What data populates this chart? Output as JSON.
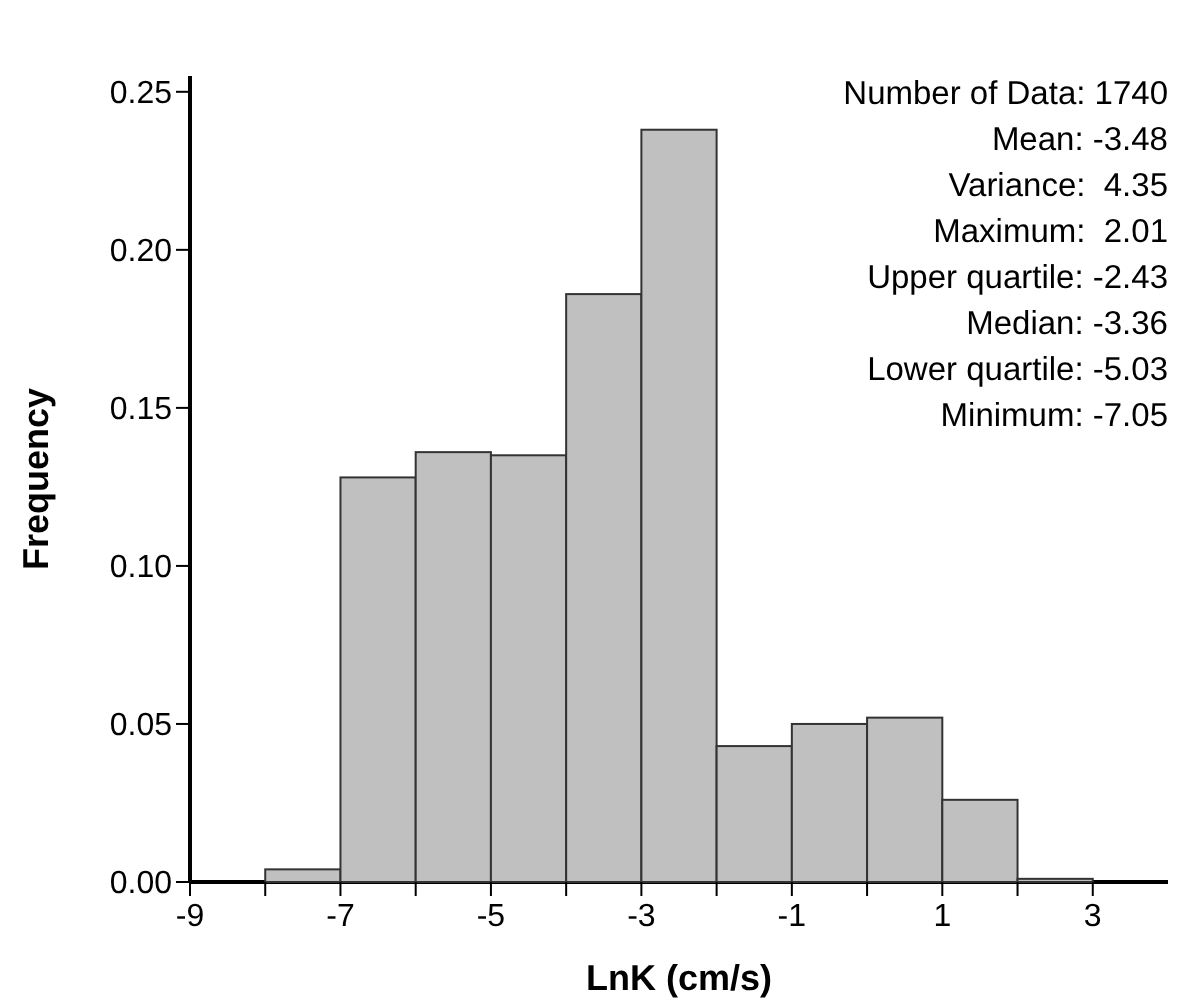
{
  "chart_data": {
    "type": "histogram",
    "xlabel": "LnK (cm/s)",
    "ylabel": "Frequency",
    "bins": [
      -8,
      -7,
      -6,
      -5,
      -4,
      -3,
      -2,
      -1,
      0,
      1,
      2,
      3
    ],
    "values": [
      0.004,
      0.128,
      0.136,
      0.135,
      0.186,
      0.238,
      0.043,
      0.05,
      0.052,
      0.026,
      0.001
    ],
    "color": "#c0c0c0",
    "xlim": [
      -9,
      4
    ],
    "xticks": [
      -9,
      {
        "value": -8,
        "label": null
      },
      -7,
      {
        "value": -6,
        "label": null
      },
      -5,
      {
        "value": -4,
        "label": null
      },
      -3,
      {
        "value": -2,
        "label": null
      },
      -1,
      {
        "value": 0,
        "label": null
      },
      1,
      {
        "value": 2,
        "label": null
      },
      3
    ],
    "ylim": [
      0,
      0.255
    ],
    "yticks": [
      {
        "value": 0,
        "label": "0.00"
      },
      {
        "value": 0.05,
        "label": "0.05"
      },
      {
        "value": 0.1,
        "label": "0.10"
      },
      {
        "value": 0.15,
        "label": "0.15"
      },
      {
        "value": 0.2,
        "label": "0.20"
      },
      {
        "value": 0.25,
        "label": "0.25"
      }
    ],
    "grid": false,
    "annotations": [
      "Number of Data: 1740",
      "Mean: -3.48",
      "Variance:  4.35",
      "Maximum:  2.01",
      "Upper quartile: -2.43",
      "Median: -3.36",
      "Lower quartile: -5.03",
      "Minimum: -7.05"
    ]
  }
}
